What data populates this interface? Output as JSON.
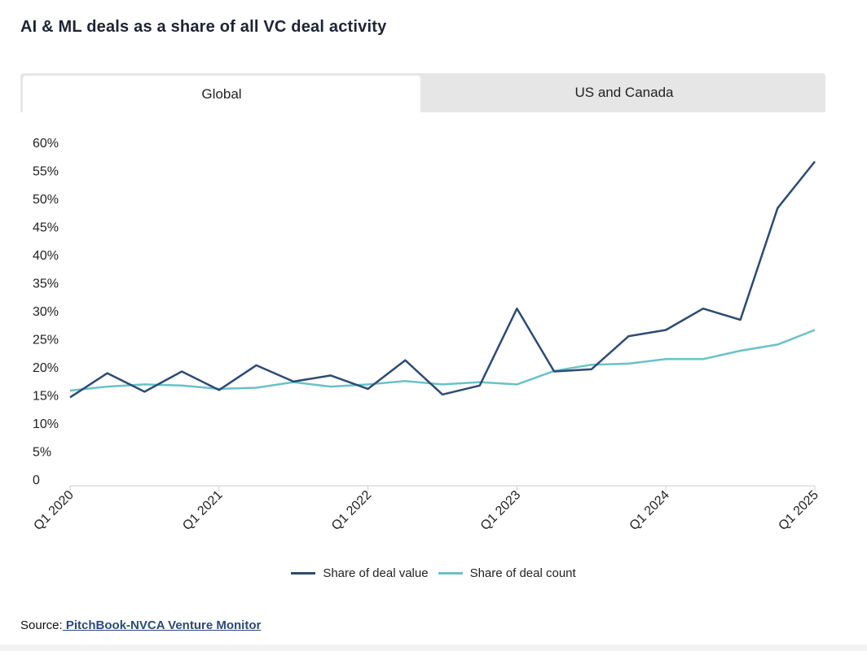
{
  "title": "AI & ML deals as a share of all VC deal activity",
  "tabs": [
    {
      "label": "Global",
      "active": true
    },
    {
      "label": "US and Canada",
      "active": false
    }
  ],
  "colors": {
    "deal_value": "#2d4b72",
    "deal_count": "#6ac1c8",
    "axis": "#cccccc",
    "text": "#222222"
  },
  "chart_data": {
    "type": "line",
    "title": "AI & ML deals as a share of all VC deal activity",
    "xlabel": "",
    "ylabel": "",
    "ylim": [
      0,
      60
    ],
    "y_ticks": [
      "0",
      "5%",
      "10%",
      "15%",
      "20%",
      "25%",
      "30%",
      "35%",
      "40%",
      "45%",
      "50%",
      "55%",
      "60%"
    ],
    "y_tick_values": [
      0,
      5,
      10,
      15,
      20,
      25,
      30,
      35,
      40,
      45,
      50,
      55,
      60
    ],
    "x": [
      "Q1 2020",
      "Q2 2020",
      "Q3 2020",
      "Q4 2020",
      "Q1 2021",
      "Q2 2021",
      "Q3 2021",
      "Q4 2021",
      "Q1 2022",
      "Q2 2022",
      "Q3 2022",
      "Q4 2022",
      "Q1 2023",
      "Q2 2023",
      "Q3 2023",
      "Q4 2023",
      "Q1 2024",
      "Q2 2024",
      "Q3 2024",
      "Q4 2024",
      "Q1 2025"
    ],
    "x_tick_labels": [
      {
        "index": 0,
        "label": "Q1 2020"
      },
      {
        "index": 4,
        "label": "Q1 2021"
      },
      {
        "index": 8,
        "label": "Q1 2022"
      },
      {
        "index": 12,
        "label": "Q1 2023"
      },
      {
        "index": 16,
        "label": "Q1 2024"
      },
      {
        "index": 20,
        "label": "Q1 2025"
      }
    ],
    "series": [
      {
        "name": "Share of deal value",
        "color": "#2d4b72",
        "values": [
          14.6,
          18.9,
          15.6,
          19.2,
          15.9,
          20.3,
          17.4,
          18.5,
          16.1,
          21.2,
          15.1,
          16.7,
          30.4,
          19.2,
          19.6,
          25.5,
          26.6,
          30.4,
          28.4,
          48.3,
          56.6
        ]
      },
      {
        "name": "Share of deal count",
        "color": "#6ac1c8",
        "values": [
          15.8,
          16.5,
          16.9,
          16.7,
          16.1,
          16.3,
          17.3,
          16.5,
          16.9,
          17.5,
          16.9,
          17.3,
          16.9,
          19.3,
          20.4,
          20.6,
          21.4,
          21.4,
          22.9,
          24.0,
          26.6
        ]
      }
    ],
    "legend_position": "bottom-center"
  },
  "legend": [
    {
      "label": "Share of deal value"
    },
    {
      "label": "Share of deal count"
    }
  ],
  "source": {
    "prefix": "Source:",
    "link_text": " PitchBook-NVCA Venture Monitor"
  }
}
